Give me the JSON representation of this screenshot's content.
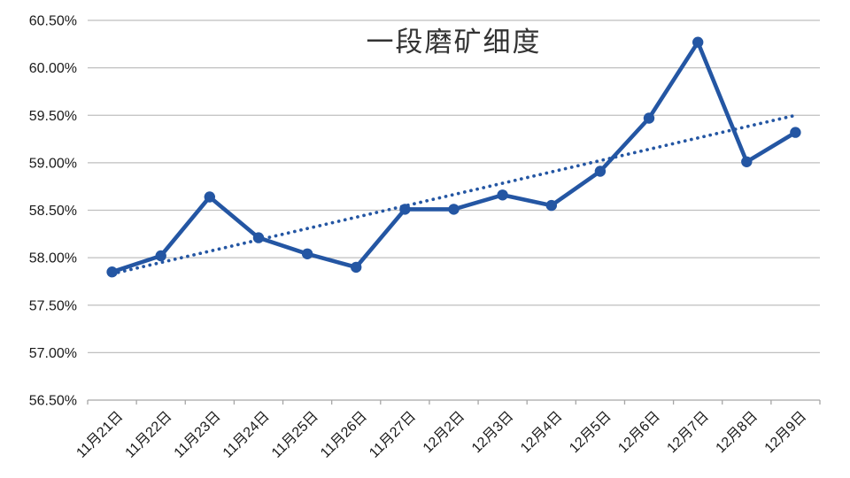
{
  "chart_data": {
    "type": "line",
    "title": "一段磨矿细度",
    "categories": [
      "11月21日",
      "11月22日",
      "11月23日",
      "11月24日",
      "11月25日",
      "11月26日",
      "11月27日",
      "12月2日",
      "12月3日",
      "12月4日",
      "12月5日",
      "12月6日",
      "12月7日",
      "12月8日",
      "12月9日"
    ],
    "series": [
      {
        "name": "一段磨矿细度",
        "unit": "%",
        "values": [
          57.85,
          58.02,
          58.64,
          58.21,
          58.04,
          57.9,
          58.51,
          58.51,
          58.66,
          58.55,
          58.91,
          59.47,
          60.27,
          59.01,
          59.32
        ]
      }
    ],
    "trendline": {
      "type": "linear",
      "style": "dotted",
      "start": 57.83,
      "end": 59.5
    },
    "y_axis": {
      "min": 56.5,
      "max": 60.5,
      "step": 0.5,
      "tick_values": [
        56.5,
        57.0,
        57.5,
        58.0,
        58.5,
        59.0,
        59.5,
        60.0,
        60.5
      ],
      "tick_labels": [
        "56.50%",
        "57.00%",
        "57.50%",
        "58.00%",
        "58.50%",
        "59.00%",
        "59.50%",
        "60.00%",
        "60.50%"
      ]
    },
    "x_axis": {
      "label_rotation_deg": -45
    },
    "grid": true,
    "legend": "none",
    "colors": {
      "series": "#2456A3",
      "trendline": "#2456A3",
      "gridline": "#BFBFBF",
      "axis": "#A6A6A6",
      "tick_text": "#1A1A1A",
      "title_text": "#333333",
      "background": "#FFFFFF"
    }
  }
}
